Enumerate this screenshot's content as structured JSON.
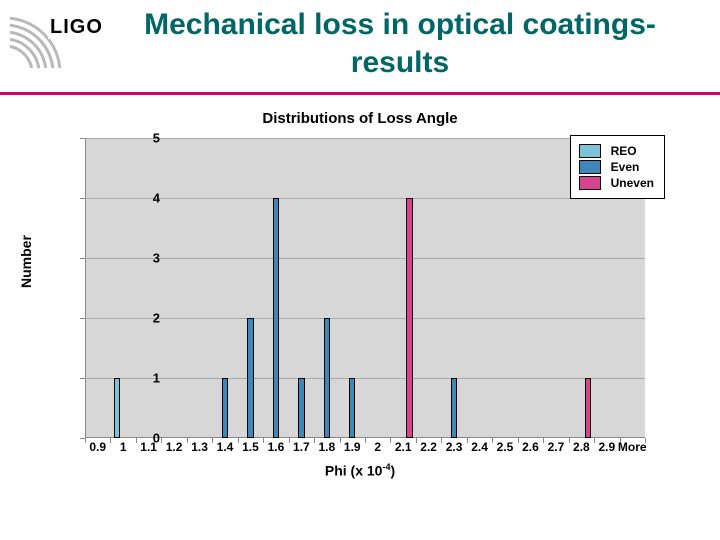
{
  "header": {
    "logo_text": "LIGO",
    "title": "Mechanical loss in optical coatings-results"
  },
  "chart": {
    "type": "bar",
    "title": "Distributions of Loss Angle",
    "y_label": "Number",
    "x_label_html": "Phi (x 10<sup>-4</sup>)",
    "background_color": "#d7d7d7",
    "grid_color": "#a9a9a9",
    "ylim": [
      0,
      5
    ],
    "ytick_step": 1,
    "bar_group_width": 0.75,
    "categories": [
      "0.9",
      "1",
      "1.1",
      "1.2",
      "1.3",
      "1.4",
      "1.5",
      "1.6",
      "1.7",
      "1.8",
      "1.9",
      "2",
      "2.1",
      "2.2",
      "2.3",
      "2.4",
      "2.5",
      "2.6",
      "2.7",
      "2.8",
      "2.9",
      "More"
    ],
    "series": [
      {
        "name": "REO",
        "color": "#7cc3d8",
        "values": [
          0,
          1,
          0,
          0,
          0,
          0,
          0,
          0,
          0,
          0,
          0,
          0,
          0,
          0,
          0,
          0,
          0,
          0,
          0,
          0,
          0,
          0
        ]
      },
      {
        "name": "Even",
        "color": "#3d87b9",
        "values": [
          0,
          0,
          0,
          0,
          0,
          1,
          2,
          4,
          1,
          2,
          1,
          0,
          0,
          0,
          1,
          0,
          0,
          0,
          0,
          0,
          0,
          0
        ]
      },
      {
        "name": "Uneven",
        "color": "#d6438f",
        "values": [
          0,
          0,
          0,
          0,
          0,
          0,
          0,
          0,
          0,
          0,
          0,
          0,
          4,
          0,
          0,
          0,
          0,
          0,
          0,
          1,
          0,
          0
        ]
      }
    ],
    "legend": {
      "position": "top-right",
      "items": [
        {
          "label": "REO",
          "color": "#7cc3d8"
        },
        {
          "label": "Even",
          "color": "#3d87b9"
        },
        {
          "label": "Uneven",
          "color": "#d6438f"
        }
      ]
    }
  }
}
